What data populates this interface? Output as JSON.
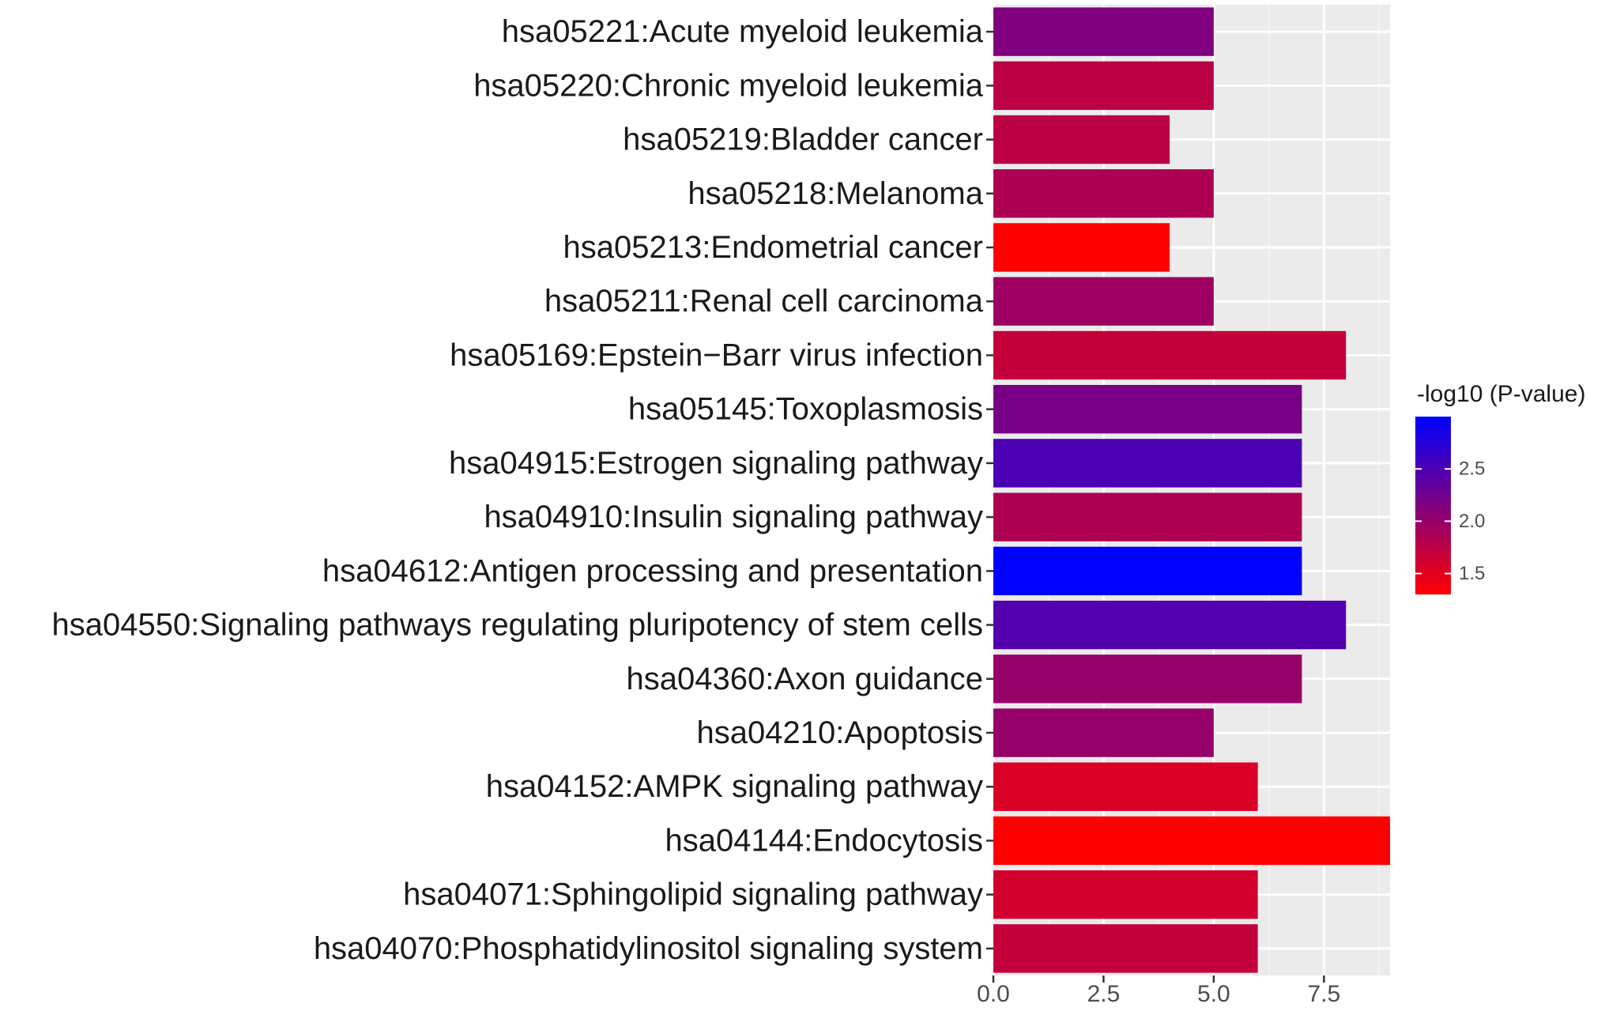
{
  "chart_data": {
    "type": "bar",
    "orientation": "horizontal",
    "title": "",
    "xlabel": "",
    "ylabel": "",
    "categories": [
      "hsa05221:Acute myeloid leukemia",
      "hsa05220:Chronic myeloid leukemia",
      "hsa05219:Bladder cancer",
      "hsa05218:Melanoma",
      "hsa05213:Endometrial cancer",
      "hsa05211:Renal cell carcinoma",
      "hsa05169:Epstein−Barr virus infection",
      "hsa05145:Toxoplasmosis",
      "hsa04915:Estrogen signaling pathway",
      "hsa04910:Insulin signaling pathway",
      "hsa04612:Antigen processing and presentation",
      "hsa04550:Signaling pathways regulating pluripotency of stem cells",
      "hsa04360:Axon guidance",
      "hsa04210:Apoptosis",
      "hsa04152:AMPK signaling pathway",
      "hsa04144:Endocytosis",
      "hsa04071:Sphingolipid signaling pathway",
      "hsa04070:Phosphatidylinositol signaling system"
    ],
    "values": [
      5,
      5,
      4,
      5,
      4,
      5,
      8,
      7,
      7,
      7,
      7,
      8,
      7,
      5,
      6,
      9,
      6,
      6
    ],
    "color_values": [
      2.15,
      1.75,
      1.75,
      1.85,
      1.3,
      1.95,
      1.7,
      2.2,
      2.5,
      1.85,
      3.0,
      2.45,
      2.0,
      2.0,
      1.55,
      1.3,
      1.6,
      1.7
    ],
    "xlim": [
      0,
      9
    ],
    "xticks": [
      0,
      2.5,
      5,
      7.5
    ],
    "xtick_labels": [
      "0.0",
      "2.5",
      "5.0",
      "7.5"
    ],
    "grid": true,
    "legend": {
      "title": "-log10 (P-value)",
      "position": "right",
      "range": [
        1.3,
        3.0
      ],
      "ticks": [
        1.5,
        2.0,
        2.5
      ],
      "tick_labels": [
        "1.5",
        "2.0",
        "2.5"
      ],
      "color_low": "#ff0000",
      "color_high": "#0000ff"
    },
    "colors": {
      "panel_background": "#ebebeb",
      "grid_major": "#ffffff",
      "grid_minor": "#f5f5f5",
      "axis_text": "#4d4d4d",
      "label_text": "#1a1a1a"
    }
  }
}
